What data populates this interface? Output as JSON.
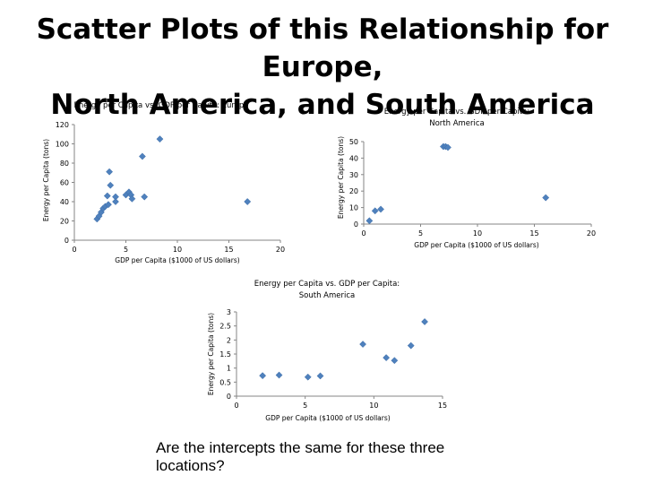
{
  "slide": {
    "title_line1": "Scatter Plots of this Relationship for Europe,",
    "title_line2": "North America, and South America",
    "question_line1": "Are the intercepts the same for these three",
    "question_line2": "locations?"
  },
  "chart_data": [
    {
      "type": "scatter",
      "title": "Energy per Capita vs. GDP per Capita: Europe",
      "xlabel": "GDP per Capita ($1000 of US dollars)",
      "ylabel": "Energy per Capita (tons)",
      "xlim": [
        0,
        20
      ],
      "ylim": [
        0,
        120
      ],
      "xticks": [
        "0",
        "5",
        "10",
        "15",
        "20"
      ],
      "yticks": [
        "0",
        "20",
        "40",
        "60",
        "80",
        "100",
        "120"
      ],
      "marker_color": "#4f81bd",
      "points": [
        {
          "x": 2.2,
          "y": 22
        },
        {
          "x": 2.4,
          "y": 25
        },
        {
          "x": 2.6,
          "y": 29
        },
        {
          "x": 2.8,
          "y": 33
        },
        {
          "x": 3.0,
          "y": 35
        },
        {
          "x": 3.2,
          "y": 46
        },
        {
          "x": 3.3,
          "y": 37
        },
        {
          "x": 3.4,
          "y": 71
        },
        {
          "x": 3.5,
          "y": 57
        },
        {
          "x": 4.0,
          "y": 45
        },
        {
          "x": 4.0,
          "y": 40
        },
        {
          "x": 5.0,
          "y": 47
        },
        {
          "x": 5.3,
          "y": 50
        },
        {
          "x": 5.5,
          "y": 47
        },
        {
          "x": 5.6,
          "y": 43
        },
        {
          "x": 6.6,
          "y": 87
        },
        {
          "x": 6.8,
          "y": 45
        },
        {
          "x": 8.3,
          "y": 105
        },
        {
          "x": 16.8,
          "y": 40
        }
      ]
    },
    {
      "type": "scatter",
      "title": "Energy per Capita vs. GDP per Capita: North America",
      "xlabel": "GDP per Capita ($1000 of US dollars)",
      "ylabel": "Energy per Capita (tons)",
      "xlim": [
        0,
        20
      ],
      "ylim": [
        0,
        50
      ],
      "xticks": [
        "0",
        "5",
        "10",
        "15",
        "20"
      ],
      "yticks": [
        "0",
        "10",
        "20",
        "30",
        "40",
        "50"
      ],
      "marker_color": "#4f81bd",
      "points": [
        {
          "x": 0.5,
          "y": 2
        },
        {
          "x": 1.0,
          "y": 8
        },
        {
          "x": 1.5,
          "y": 9
        },
        {
          "x": 7.0,
          "y": 47
        },
        {
          "x": 7.2,
          "y": 47
        },
        {
          "x": 7.4,
          "y": 46.5
        },
        {
          "x": 16.0,
          "y": 16
        }
      ]
    },
    {
      "type": "scatter",
      "title": "Energy per Capita vs. GDP per Capita: South America",
      "xlabel": "GDP per Capita ($1000 of US dollars)",
      "ylabel": "Energy per Capita (tons)",
      "xlim": [
        0,
        15
      ],
      "ylim": [
        0,
        3
      ],
      "xticks": [
        "0",
        "5",
        "10",
        "15"
      ],
      "yticks": [
        "0",
        "0.5",
        "1",
        "1.5",
        "2",
        "2.5",
        "3"
      ],
      "marker_color": "#4f81bd",
      "points": [
        {
          "x": 1.9,
          "y": 0.73
        },
        {
          "x": 3.1,
          "y": 0.75
        },
        {
          "x": 5.2,
          "y": 0.68
        },
        {
          "x": 6.1,
          "y": 0.72
        },
        {
          "x": 9.2,
          "y": 1.85
        },
        {
          "x": 10.9,
          "y": 1.37
        },
        {
          "x": 11.5,
          "y": 1.27
        },
        {
          "x": 12.7,
          "y": 1.8
        },
        {
          "x": 13.7,
          "y": 2.65
        }
      ]
    }
  ]
}
